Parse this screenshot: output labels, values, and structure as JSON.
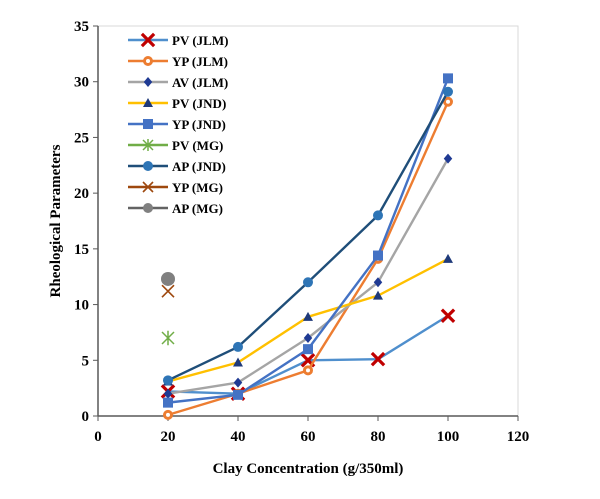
{
  "chart_data": {
    "type": "line",
    "xlabel": "Clay Concentration (g/350ml)",
    "ylabel": "Rheological Parameters",
    "xlim": [
      0,
      120
    ],
    "ylim": [
      0,
      35
    ],
    "xticks": [
      0,
      20,
      40,
      60,
      80,
      100,
      120
    ],
    "yticks": [
      0,
      5,
      10,
      15,
      20,
      25,
      30,
      35
    ],
    "grid": false,
    "legend": "top-left",
    "series": [
      {
        "name": "PV (JLM)",
        "color": "#4f8fcd",
        "marker": "x-bold",
        "markerColor": "#c00000",
        "x": [
          20,
          40,
          60,
          80,
          100
        ],
        "y": [
          2.2,
          2.0,
          5.0,
          5.1,
          9.0
        ]
      },
      {
        "name": "YP (JLM)",
        "color": "#ed7d31",
        "marker": "circle-dot",
        "markerColor": "#ed7d31",
        "x": [
          20,
          40,
          60,
          80,
          100
        ],
        "y": [
          0.1,
          2.0,
          4.1,
          14.1,
          28.2
        ]
      },
      {
        "name": "AV (JLM)",
        "color": "#a5a5a5",
        "marker": "diamond",
        "markerColor": "#1f3a93",
        "x": [
          20,
          40,
          60,
          80,
          100
        ],
        "y": [
          2.0,
          3.0,
          7.0,
          12.0,
          23.1
        ]
      },
      {
        "name": "PV (JND)",
        "color": "#ffc000",
        "marker": "triangle",
        "markerColor": "#1f3a7a",
        "x": [
          20,
          40,
          60,
          80,
          100
        ],
        "y": [
          3.1,
          4.8,
          8.9,
          10.8,
          14.1
        ]
      },
      {
        "name": "YP (JND)",
        "color": "#4472c4",
        "marker": "square",
        "markerColor": "#4472c4",
        "x": [
          20,
          40,
          60,
          80,
          100
        ],
        "y": [
          1.2,
          1.9,
          6.0,
          14.4,
          30.3
        ]
      },
      {
        "name": "PV (MG)",
        "color": "#70ad47",
        "marker": "asterisk",
        "markerColor": "#70ad47",
        "x": [
          20
        ],
        "y": [
          7.0
        ]
      },
      {
        "name": "AP (JND)",
        "color": "#1f4e79",
        "marker": "circle",
        "markerColor": "#2e75b6",
        "x": [
          20,
          40,
          60,
          80,
          100
        ],
        "y": [
          3.2,
          6.2,
          12.0,
          18.0,
          29.1
        ]
      },
      {
        "name": "YP (MG)",
        "color": "#9e480e",
        "marker": "x-thin",
        "markerColor": "#9e480e",
        "x": [
          20
        ],
        "y": [
          11.2
        ]
      },
      {
        "name": "AP (MG)",
        "color": "#636363",
        "marker": "circle",
        "markerColor": "#808080",
        "x": [
          20
        ],
        "y": [
          12.3
        ]
      }
    ]
  }
}
